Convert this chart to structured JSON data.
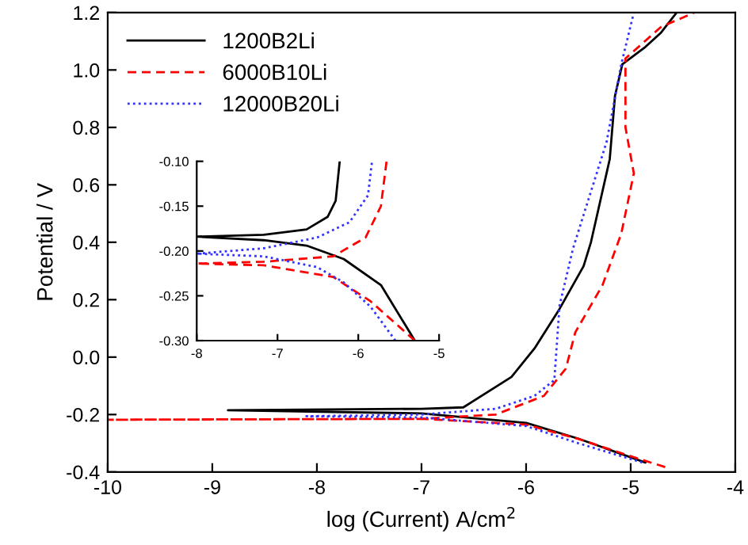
{
  "chart_data": [
    {
      "type": "line",
      "xlabel": "log (Current) A/cm$^{2}$",
      "ylabel": "Potential / V",
      "xlim": [
        -10,
        -4
      ],
      "ylim": [
        -0.4,
        1.2
      ],
      "xticks": [
        -10,
        -9,
        -8,
        -7,
        -6,
        -5,
        -4
      ],
      "yticks": [
        -0.4,
        -0.2,
        {
          "value": 0,
          "label": "0.0"
        },
        0.2,
        0.4,
        0.6,
        0.8,
        {
          "value": 1,
          "label": "1.0"
        },
        1.2
      ],
      "legend": "top left",
      "grid": false,
      "series": [
        {
          "name": "1200B2Li",
          "color": "#000000",
          "line_style": "solid",
          "x": [
            -4.86,
            -5.5,
            -6.0,
            -7.0,
            -8.85,
            -7.0,
            -6.6,
            -6.14,
            -5.92,
            -5.68,
            -5.45,
            -5.38,
            -5.2,
            -5.15,
            -5.08,
            -4.86,
            -4.71,
            -4.56
          ],
          "values": [
            -0.367,
            -0.284,
            -0.229,
            -0.196,
            -0.185,
            -0.18,
            -0.175,
            -0.069,
            0.03,
            0.168,
            0.317,
            0.4,
            0.69,
            0.91,
            1.02,
            1.08,
            1.13,
            1.2
          ]
        },
        {
          "name": "6000B10Li",
          "color": "#ff0000",
          "line_style": "dashed",
          "x": [
            -4.67,
            -5.0,
            -5.5,
            -6.0,
            -7.0,
            -10.0,
            -7.0,
            -6.29,
            -5.83,
            -5.62,
            -5.53,
            -5.27,
            -5.09,
            -4.97,
            -5.05,
            -5.05,
            -4.71,
            -4.39
          ],
          "values": [
            -0.383,
            -0.345,
            -0.285,
            -0.235,
            -0.215,
            -0.218,
            -0.215,
            -0.2,
            -0.135,
            -0.04,
            0.086,
            0.25,
            0.43,
            0.64,
            0.8,
            1.04,
            1.15,
            1.2
          ]
        },
        {
          "name": "12000B20Li",
          "color": "#3333ff",
          "line_style": "dotted",
          "x": [
            -4.89,
            -5.5,
            -6.0,
            -7.0,
            -8.1,
            -7.0,
            -6.29,
            -5.92,
            -5.73,
            -5.68,
            -5.55,
            -5.23,
            -5.09,
            -4.97
          ],
          "values": [
            -0.367,
            -0.3,
            -0.24,
            -0.21,
            -0.206,
            -0.2,
            -0.18,
            -0.135,
            -0.08,
            0.18,
            0.38,
            0.75,
            1.02,
            1.2
          ]
        }
      ]
    },
    {
      "type": "line",
      "xlim": [
        -8,
        -5
      ],
      "ylim": [
        -0.3,
        -0.1
      ],
      "xticks": [
        -8,
        -7,
        -6,
        -5
      ],
      "yticks": [
        {
          "value": -0.3,
          "label": "-0.30"
        },
        {
          "value": -0.25,
          "label": "-0.25"
        },
        {
          "value": -0.2,
          "label": "-0.20"
        },
        {
          "value": -0.15,
          "label": "-0.15"
        },
        {
          "value": -0.1,
          "label": "-0.10"
        }
      ],
      "grid": false,
      "series": [
        {
          "color": "#000000",
          "line_style": "solid",
          "x": [
            -5.3,
            -5.72,
            -6.18,
            -6.64,
            -7.17,
            -8.0,
            -7.17,
            -6.64,
            -6.38,
            -6.28,
            -6.23
          ],
          "values": [
            -0.3,
            -0.238,
            -0.209,
            -0.194,
            -0.188,
            -0.184,
            -0.182,
            -0.176,
            -0.162,
            -0.144,
            -0.1
          ]
        },
        {
          "color": "#ff0000",
          "line_style": "dashed",
          "x": [
            -5.3,
            -5.85,
            -6.31,
            -7.17,
            -8.0,
            -7.17,
            -6.31,
            -5.91,
            -5.72,
            -5.65
          ],
          "values": [
            -0.3,
            -0.256,
            -0.229,
            -0.216,
            -0.214,
            -0.212,
            -0.206,
            -0.185,
            -0.15,
            -0.1
          ]
        },
        {
          "color": "#3333ff",
          "line_style": "dotted",
          "x": [
            -5.54,
            -5.85,
            -6.18,
            -6.51,
            -7.17,
            -8.0,
            -7.17,
            -6.51,
            -6.11,
            -5.88,
            -5.83
          ],
          "values": [
            -0.3,
            -0.262,
            -0.235,
            -0.218,
            -0.206,
            -0.203,
            -0.197,
            -0.185,
            -0.168,
            -0.138,
            -0.1
          ]
        }
      ]
    }
  ]
}
